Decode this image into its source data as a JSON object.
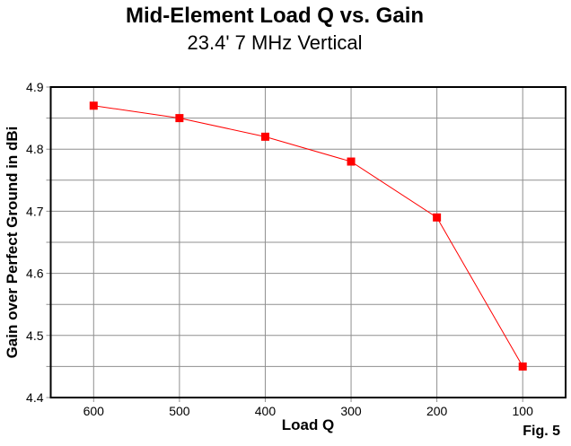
{
  "chart_data": {
    "type": "line",
    "title": "Mid-Element Load Q vs. Gain",
    "subtitle": "23.4' 7 MHz Vertical",
    "xlabel": "Load Q",
    "ylabel": "Gain over Perfect Ground in dBi",
    "annotation": "Fig. 5",
    "x": [
      600,
      500,
      400,
      300,
      200,
      100
    ],
    "values": [
      4.87,
      4.85,
      4.82,
      4.78,
      4.69,
      4.45
    ],
    "xlim": [
      650,
      50
    ],
    "ylim": [
      4.4,
      4.9
    ],
    "x_ticks": [
      600,
      500,
      400,
      300,
      200,
      100
    ],
    "y_major_ticks": [
      4.9,
      4.8,
      4.7,
      4.6,
      4.5,
      4.4
    ],
    "y_minor_step": 0.05,
    "grid": true,
    "legend": false,
    "marker": "square",
    "colors": {
      "series": "#ff0000",
      "grid": "#8f8f8f",
      "axis": "#000000",
      "text": "#000000",
      "background": "#ffffff"
    }
  }
}
